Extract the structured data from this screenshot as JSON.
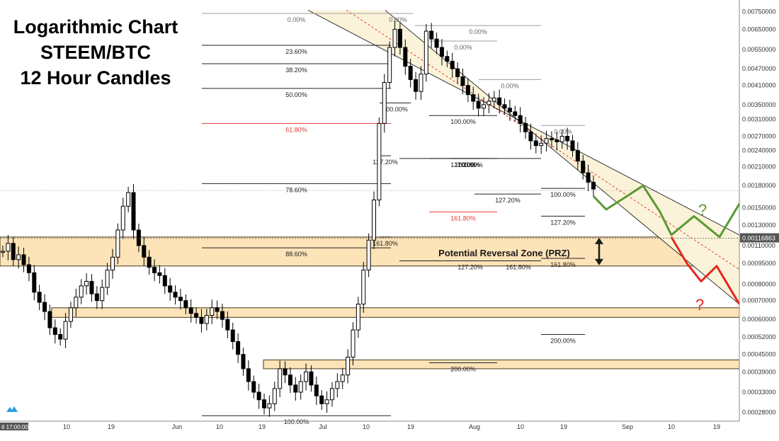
{
  "title_lines": [
    "Logarithmic Chart",
    "STEEM/BTC",
    "12 Hour Candles"
  ],
  "colors": {
    "candle": "#000000",
    "channel_fill": "#fbf3d9",
    "prz_fill": "#fce3b8",
    "prz_edge": "#4a3a1a",
    "fib_red": "#e53935",
    "fib_gray": "#9e9e9e",
    "fib_black": "#222222",
    "green_path": "#5a9a32",
    "red_path": "#e8261f",
    "axis_text": "#333333"
  },
  "chart_data": {
    "type": "candlestick",
    "title": "Logarithmic Chart STEEM/BTC 12 Hour Candles",
    "y_scale": "log",
    "ylim": [
      0.00026,
      0.0078
    ],
    "y_ticks": [
      "0.00750000",
      "0.00650000",
      "0.00550000",
      "0.00470000",
      "0.00410000",
      "0.00350000",
      "0.00310000",
      "0.00270000",
      "0.00240000",
      "0.00210000",
      "0.00180000",
      "0.00150000",
      "0.00130000",
      "0.00110000",
      "0.00095000",
      "0.00080000",
      "0.00070000",
      "0.00060000",
      "0.00052000",
      "0.00045000",
      "0.00039000",
      "0.00033000",
      "0.00028000"
    ],
    "x_ticks": [
      "6 17:00:00",
      "10",
      "19",
      "Jun",
      "10",
      "19",
      "Jul",
      "10",
      "19",
      "Aug",
      "10",
      "19",
      "Sep",
      "10",
      "19"
    ],
    "current_price": "0.00116863",
    "prz": {
      "label": "Potential Reversal Zone (PRZ)",
      "low": 0.00093,
      "high": 0.00118
    },
    "support_zones": [
      {
        "low": 0.00061,
        "high": 0.00066
      },
      {
        "low": 0.0004,
        "high": 0.00043
      }
    ],
    "candle_path": [
      0.00105,
      0.00112,
      0.00098,
      0.00102,
      0.00094,
      0.00088,
      0.00075,
      0.00069,
      0.00064,
      0.00056,
      0.00053,
      0.00051,
      0.00059,
      0.00066,
      0.00072,
      0.00079,
      0.00082,
      0.00074,
      0.0007,
      0.00078,
      0.0009,
      0.001,
      0.00125,
      0.00152,
      0.0017,
      0.00125,
      0.0011,
      0.001,
      0.00092,
      0.00088,
      0.00086,
      0.00079,
      0.00075,
      0.00072,
      0.0007,
      0.00066,
      0.00063,
      0.00061,
      0.00058,
      0.00062,
      0.00066,
      0.00064,
      0.0006,
      0.00055,
      0.0005,
      0.00045,
      0.0004,
      0.00036,
      0.00033,
      0.00031,
      0.00029,
      0.0003,
      0.00034,
      0.0004,
      0.00038,
      0.00035,
      0.00033,
      0.00036,
      0.00039,
      0.00035,
      0.00032,
      0.0003,
      0.00031,
      0.00034,
      0.00036,
      0.00038,
      0.00044,
      0.00055,
      0.00068,
      0.0009,
      0.00115,
      0.0016,
      0.003,
      0.0042,
      0.0056,
      0.0065,
      0.0056,
      0.0048,
      0.0043,
      0.0039,
      0.0045,
      0.0064,
      0.006,
      0.0056,
      0.0052,
      0.005,
      0.0047,
      0.0044,
      0.0041,
      0.0038,
      0.0036,
      0.0034,
      0.0035,
      0.0036,
      0.0037,
      0.0035,
      0.0034,
      0.0033,
      0.0032,
      0.003,
      0.0028,
      0.0026,
      0.0025,
      0.00255,
      0.00265,
      0.00262,
      0.00258,
      0.0027,
      0.0026,
      0.0024,
      0.0022,
      0.002,
      0.00185,
      0.00175
    ],
    "fib_levels": [
      {
        "label": "0.00%",
        "price": 0.0074,
        "color": "gray",
        "x0": 285,
        "x1": 552
      },
      {
        "label": "23.60%",
        "price": 0.0057,
        "color": "black",
        "x0": 285,
        "x1": 552
      },
      {
        "label": "38.20%",
        "price": 0.0049,
        "color": "black",
        "x0": 285,
        "x1": 552
      },
      {
        "label": "50.00%",
        "price": 0.004,
        "color": "black",
        "x0": 285,
        "x1": 552
      },
      {
        "label": "61.80%",
        "price": 0.003,
        "color": "red",
        "x0": 285,
        "x1": 552
      },
      {
        "label": "78.60%",
        "price": 0.00183,
        "color": "black",
        "x0": 285,
        "x1": 552
      },
      {
        "label": "88.60%",
        "price": 0.00108,
        "color": "black",
        "x0": 285,
        "x1": 552
      },
      {
        "label": "100.00%",
        "price": 0.000272,
        "color": "black",
        "x0": 285,
        "x1": 552
      },
      {
        "label": "0.00%",
        "price": 0.0074,
        "color": "gray",
        "x0": 541,
        "x1": 583
      },
      {
        "label": "100.00%",
        "price": 0.00355,
        "color": "black",
        "x0": 536,
        "x1": 580
      },
      {
        "label": "127.20%",
        "price": 0.0023,
        "color": "black",
        "x0": 536,
        "x1": 552
      },
      {
        "label": "161.80%",
        "price": 0.00118,
        "color": "black",
        "x0": 536,
        "x1": 552
      },
      {
        "label": "0.00%",
        "price": 0.0067,
        "color": "gray",
        "x0": 586,
        "x1": 764
      },
      {
        "label": "0.00%",
        "price": 0.0059,
        "color": "gray",
        "x0": 606,
        "x1": 702
      },
      {
        "label": "100.00%",
        "price": 0.0032,
        "color": "black",
        "x0": 606,
        "x1": 702
      },
      {
        "label": "127.20%",
        "price": 0.00225,
        "color": "black",
        "x0": 606,
        "x1": 702
      },
      {
        "label": "161.80%",
        "price": 0.00145,
        "color": "red",
        "x0": 606,
        "x1": 702
      },
      {
        "label": "200.00%",
        "price": 0.00042,
        "color": "black",
        "x0": 606,
        "x1": 702
      },
      {
        "label": "0.00%",
        "price": 0.0043,
        "color": "gray",
        "x0": 676,
        "x1": 764
      },
      {
        "label": "100.00%",
        "price": 0.00225,
        "color": "black",
        "x0": 640,
        "x1": 680
      },
      {
        "label": "100.00%",
        "price": 0.00225,
        "color": "black",
        "x0": 564,
        "x1": 764
      },
      {
        "label": "127.20%",
        "price": 0.00168,
        "color": "black",
        "x0": 670,
        "x1": 764
      },
      {
        "label": "127.20%",
        "price": 0.00097,
        "color": "black",
        "x0": 564,
        "x1": 764
      },
      {
        "label": "161.80%",
        "price": 0.00097,
        "color": "black",
        "x0": 700,
        "x1": 764
      },
      {
        "label": "0.00%",
        "price": 0.00295,
        "color": "gray",
        "x0": 764,
        "x1": 826
      },
      {
        "label": "100.00%",
        "price": 0.00176,
        "color": "black",
        "x0": 764,
        "x1": 826
      },
      {
        "label": "127.20%",
        "price": 0.0014,
        "color": "black",
        "x0": 764,
        "x1": 826
      },
      {
        "label": "161.80%",
        "price": 0.00099,
        "color": "black",
        "x0": 764,
        "x1": 826
      },
      {
        "label": "200.00%",
        "price": 0.00053,
        "color": "black",
        "x0": 764,
        "x1": 826
      }
    ],
    "channel": {
      "upper": [
        [
          435,
          0.0076
        ],
        [
          1044,
          0.0012
        ]
      ],
      "lower": [
        [
          544,
          0.0076
        ],
        [
          1044,
          0.00068
        ]
      ]
    },
    "projections": {
      "green": [
        0.00165,
        0.00148,
        0.00163,
        0.0018,
        0.00145,
        0.0012,
        0.0014,
        0.00118,
        0.00155
      ],
      "red": [
        0.00118,
        0.00095,
        0.00082,
        0.00093,
        0.00068
      ]
    },
    "question_marks": [
      "?",
      "?"
    ]
  }
}
